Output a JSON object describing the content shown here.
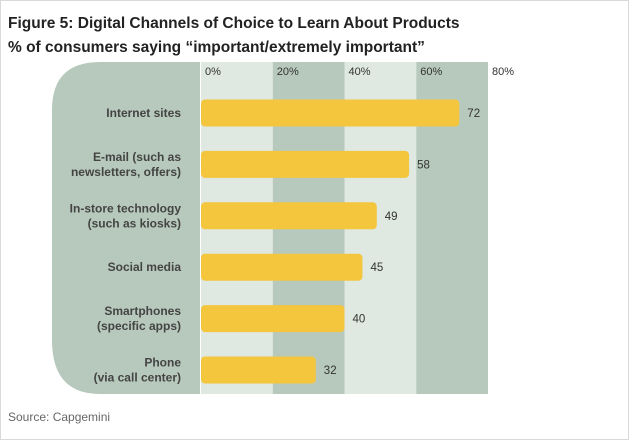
{
  "title": "Figure 5: Digital Channels of Choice to Learn About Products",
  "subtitle": "% of consumers saying “important/extremely important”",
  "source": "Source: Capgemini",
  "colors": {
    "bar": "#f4c63d",
    "category_panel": "#b7c9bc",
    "band_light": "#dfe8e1",
    "band_dark": "#b7c9bc",
    "text": "#333333"
  },
  "chart_data": {
    "type": "bar",
    "orientation": "horizontal",
    "categories": [
      [
        "Internet sites"
      ],
      [
        "E-mail (such as",
        "newsletters, offers)"
      ],
      [
        "In-store technology",
        "(such as kiosks)"
      ],
      [
        "Social media"
      ],
      [
        "Smartphones",
        "(specific apps)"
      ],
      [
        "Phone",
        "(via call center)"
      ]
    ],
    "values": [
      72,
      58,
      49,
      45,
      40,
      32
    ],
    "xlim": [
      0,
      80
    ],
    "ticks": [
      0,
      20,
      40,
      60,
      80
    ],
    "tick_labels": [
      "0%",
      "20%",
      "40%",
      "60%",
      "80%"
    ],
    "tick_position": "top",
    "grid": "alternating bands"
  }
}
